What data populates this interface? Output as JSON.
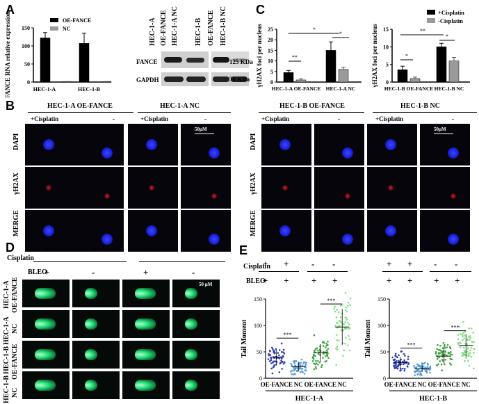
{
  "panel_labels": {
    "A": "A",
    "B": "B",
    "C": "C",
    "D": "D",
    "E": "E"
  },
  "panelA": {
    "chart_data": {
      "type": "bar",
      "ylabel": "FANCE RNA relative expression",
      "categories": [
        "HEC-1-A",
        "HEC-1-B"
      ],
      "ylim": [
        0,
        150
      ],
      "yticks": [
        "0",
        "50",
        "100",
        "150"
      ],
      "series": [
        {
          "name": "OE-FANCE",
          "values": [
            122,
            107
          ],
          "errors": [
            15,
            28
          ],
          "color": "#000000"
        },
        {
          "name": "NC",
          "values": [
            1,
            1
          ],
          "errors": [
            0.5,
            0.5
          ],
          "color": "#9a9a9a"
        }
      ],
      "legend": [
        "OE-FANCE",
        "NC"
      ]
    }
  },
  "blot": {
    "lane_labels": [
      "HEC-1-A",
      "OE-FANCE",
      "HEC-1-A NC",
      "HEC-1-B",
      "OE-FANCE",
      "HEC-1-B NC"
    ],
    "rows": [
      "FANCE",
      "GAPDH"
    ],
    "sizes": [
      "125 KDa",
      "36 KDa"
    ]
  },
  "panelC_left": {
    "chart_data": {
      "type": "bar",
      "ylabel": "γH2AX foci per nucleus",
      "categories": [
        "HEC-1-A OE-FANCE",
        "HEC-1-A NC"
      ],
      "ylim": [
        0,
        25
      ],
      "yticks": [
        "0",
        "5",
        "10",
        "15",
        "20",
        "25"
      ],
      "series": [
        {
          "name": "+Cisplatin",
          "values": [
            4.5,
            15
          ],
          "errors": [
            1,
            4
          ],
          "color": "#000000"
        },
        {
          "name": "-Cisplatin",
          "values": [
            1,
            6
          ],
          "errors": [
            0.5,
            1
          ],
          "color": "#9a9a9a"
        }
      ],
      "significance": [
        "**",
        "*",
        "*"
      ]
    }
  },
  "panelC_right": {
    "chart_data": {
      "type": "bar",
      "ylabel": "γH2AX foci per nucleus",
      "categories": [
        "HEC-1-B OE-FANCE",
        "HEC-1-B NC"
      ],
      "ylim": [
        0,
        15
      ],
      "yticks": [
        "0",
        "5",
        "10",
        "15"
      ],
      "series": [
        {
          "name": "+Cisplatin",
          "values": [
            3.5,
            10
          ],
          "errors": [
            1,
            1
          ],
          "color": "#000000"
        },
        {
          "name": "-Cisplatin",
          "values": [
            1,
            6
          ],
          "errors": [
            0.4,
            1
          ],
          "color": "#9a9a9a"
        }
      ],
      "legend": [
        "+Cisplatin",
        "-Cisplatin"
      ],
      "significance": [
        "*",
        "**",
        "*"
      ]
    }
  },
  "panelB": {
    "groups": [
      "HEC-1-A OE-FANCE",
      "HEC-1-A NC",
      "HEC-1-B OE-FANCE",
      "HEC-1-B NC"
    ],
    "conditions": [
      "+Cisplatin",
      "-"
    ],
    "rows": [
      "DAPI",
      "γH2AX",
      "MERGE"
    ],
    "scale": "50μM"
  },
  "panelD": {
    "cisplatin_label": "Cisplatin",
    "bleo_label": "BLEO",
    "cisplatin_signs": [
      "+",
      "+",
      "-",
      "-"
    ],
    "bleo_signs": [
      "+",
      "-",
      "+",
      "-"
    ],
    "row_labels": [
      "HEC-1-A",
      "OE-FANCE",
      "HEC-1-A",
      "NC",
      "HEC-1-B",
      "OE-FANCE",
      "HEC-1-B",
      "NC"
    ],
    "scale": "50 μM"
  },
  "panelE": {
    "cisplatin_label": "Cisplatin",
    "bleo_label": "BLEO",
    "cisplatin_signs": [
      "+",
      "+",
      "-",
      "-"
    ],
    "bleo_signs": [
      "+",
      "+",
      "+",
      "+"
    ],
    "left": {
      "chart_data": {
        "type": "scatter",
        "ylabel": "Tail Moment",
        "xlabel": "HEC-1-A",
        "categories": [
          "OE-FANCE",
          "NC",
          "OE-FANCE",
          "NC"
        ],
        "ylim": [
          0,
          150
        ],
        "yticks": [
          "0",
          "50",
          "100",
          "150"
        ],
        "means": [
          40,
          22,
          48,
          97
        ],
        "colors": [
          "#2c3db3",
          "#5a9bd5",
          "#3ca33c",
          "#7fe07f"
        ],
        "significance": [
          "***",
          "***"
        ]
      }
    },
    "right": {
      "chart_data": {
        "type": "scatter",
        "ylabel": "Tail Moment",
        "xlabel": "HEC-1-B",
        "categories": [
          "OE-FANCE",
          "NC",
          "OE-FANCE",
          "NC"
        ],
        "ylim": [
          0,
          150
        ],
        "yticks": [
          "0",
          "50",
          "100",
          "150"
        ],
        "means": [
          30,
          18,
          42,
          62
        ],
        "colors": [
          "#2c3db3",
          "#5a9bd5",
          "#3ca33c",
          "#7fe07f"
        ],
        "significance": [
          "***",
          "***"
        ]
      }
    }
  }
}
